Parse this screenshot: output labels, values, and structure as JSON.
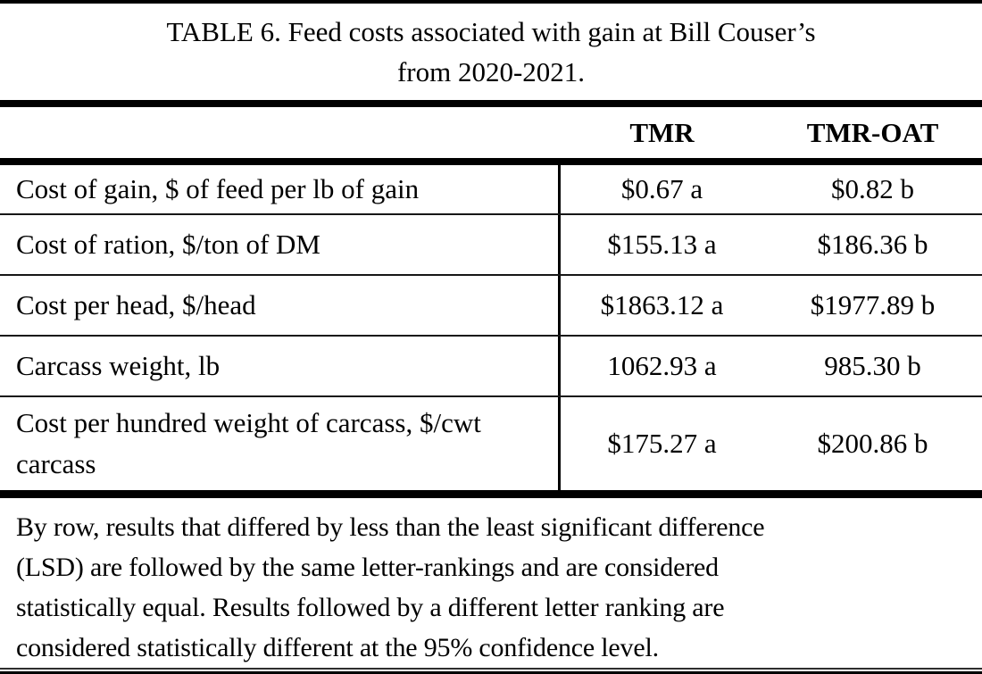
{
  "title": {
    "line1": "TABLE 6. Feed costs associated with gain at Bill Couser’s",
    "line2": "from 2020-2021."
  },
  "columns": [
    {
      "label": "TMR"
    },
    {
      "label": "TMR-OAT"
    }
  ],
  "rows": [
    {
      "label": "Cost of gain, $ of feed per lb of gain",
      "tmr": "$0.67 a",
      "tmr_oat": "$0.82 b"
    },
    {
      "label": "Cost of ration, $/ton of DM",
      "tmr": "$155.13 a",
      "tmr_oat": "$186.36 b"
    },
    {
      "label": "Cost per head, $/head",
      "tmr": "$1863.12 a",
      "tmr_oat": "$1977.89 b"
    },
    {
      "label": "Carcass weight, lb",
      "tmr": "1062.93 a",
      "tmr_oat": "985.30 b"
    },
    {
      "label": "Cost per hundred weight of carcass, $/cwt carcass",
      "tmr": "$175.27 a",
      "tmr_oat": "$200.86 b"
    }
  ],
  "footnote_lines": [
    "By row, results that differed by less than the least significant difference",
    "(LSD) are followed by the same letter-rankings and are considered",
    "statistically equal. Results followed by a different letter ranking are",
    "considered statistically different at the 95% confidence level."
  ],
  "colors": {
    "background": "#ffffff",
    "text": "#000000",
    "rule": "#000000"
  }
}
